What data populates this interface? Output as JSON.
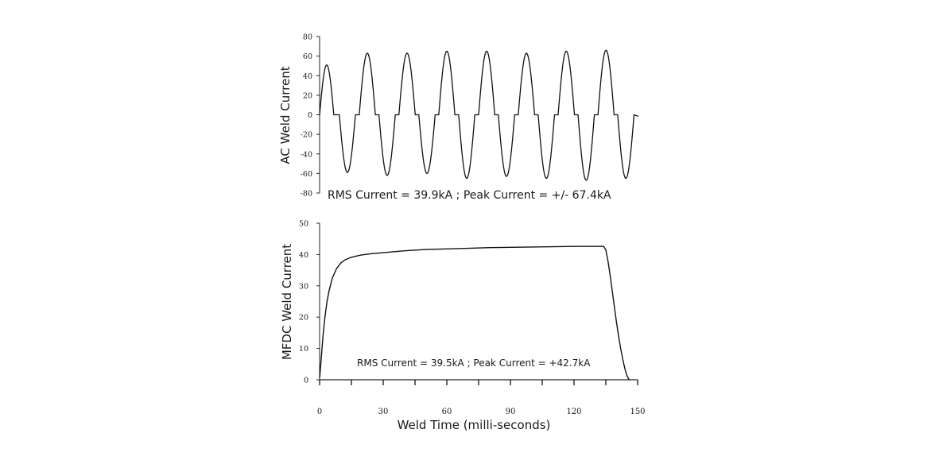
{
  "chart_data": [
    {
      "type": "line",
      "ylabel": "AC Weld Current",
      "xlabel": "",
      "annotation": "RMS Current = 39.9kA ; Peak Current = +/- 67.4kA",
      "xlim": [
        0,
        150
      ],
      "ylim": [
        -80,
        80
      ],
      "y_ticks": [
        "80",
        "60",
        "40",
        "20",
        "0",
        "-20",
        "-40",
        "-60",
        "-80"
      ],
      "half_cycles": [
        {
          "start": 0.0,
          "end": 6.7,
          "peak": 51
        },
        {
          "start": 9.3,
          "end": 16.9,
          "peak": -59
        },
        {
          "start": 18.7,
          "end": 26.3,
          "peak": 63
        },
        {
          "start": 28.0,
          "end": 35.7,
          "peak": -62
        },
        {
          "start": 37.4,
          "end": 45.1,
          "peak": 63
        },
        {
          "start": 46.8,
          "end": 54.5,
          "peak": -60
        },
        {
          "start": 56.2,
          "end": 63.8,
          "peak": 65
        },
        {
          "start": 65.6,
          "end": 73.2,
          "peak": -65
        },
        {
          "start": 75.0,
          "end": 82.6,
          "peak": 65
        },
        {
          "start": 84.3,
          "end": 92.0,
          "peak": -63
        },
        {
          "start": 93.7,
          "end": 101.4,
          "peak": 63
        },
        {
          "start": 103.1,
          "end": 110.8,
          "peak": -65
        },
        {
          "start": 112.5,
          "end": 120.2,
          "peak": 65
        },
        {
          "start": 121.9,
          "end": 129.6,
          "peak": -67
        },
        {
          "start": 131.3,
          "end": 138.9,
          "peak": 66
        },
        {
          "start": 140.6,
          "end": 148.3,
          "peak": -65
        }
      ],
      "tail": {
        "x_end": 150,
        "y": -1.5
      }
    },
    {
      "type": "line",
      "ylabel": "MFDC Weld Current",
      "xlabel": "Weld Time (milli-seconds)",
      "annotation": "RMS Current = 39.5kA ; Peak Current = +42.7kA",
      "xlim": [
        0,
        150
      ],
      "ylim": [
        0,
        50
      ],
      "y_ticks": [
        "50",
        "40",
        "30",
        "20",
        "10",
        "0"
      ],
      "x_ticks": [
        "0",
        "30",
        "60",
        "90",
        "120",
        "150"
      ],
      "series": [
        {
          "x": [
            0,
            0.8,
            1.6,
            2.5,
            3.5,
            4.5,
            6,
            8,
            10,
            12,
            14,
            16,
            18,
            20,
            25,
            30,
            40,
            50,
            60,
            70,
            80,
            90,
            100,
            110,
            120,
            130,
            134,
            135,
            136,
            137,
            138,
            139,
            140,
            141,
            142,
            143,
            144,
            145,
            146
          ],
          "y": [
            0.5,
            7,
            14,
            20,
            25,
            28.5,
            32.5,
            35.5,
            37.3,
            38.3,
            38.9,
            39.3,
            39.6,
            39.9,
            40.3,
            40.6,
            41.2,
            41.6,
            41.8,
            42.0,
            42.2,
            42.3,
            42.4,
            42.5,
            42.6,
            42.6,
            42.6,
            41.5,
            38,
            33.5,
            28.5,
            23.5,
            18.5,
            14,
            10,
            6.5,
            3.5,
            1.2,
            0
          ]
        }
      ]
    }
  ]
}
